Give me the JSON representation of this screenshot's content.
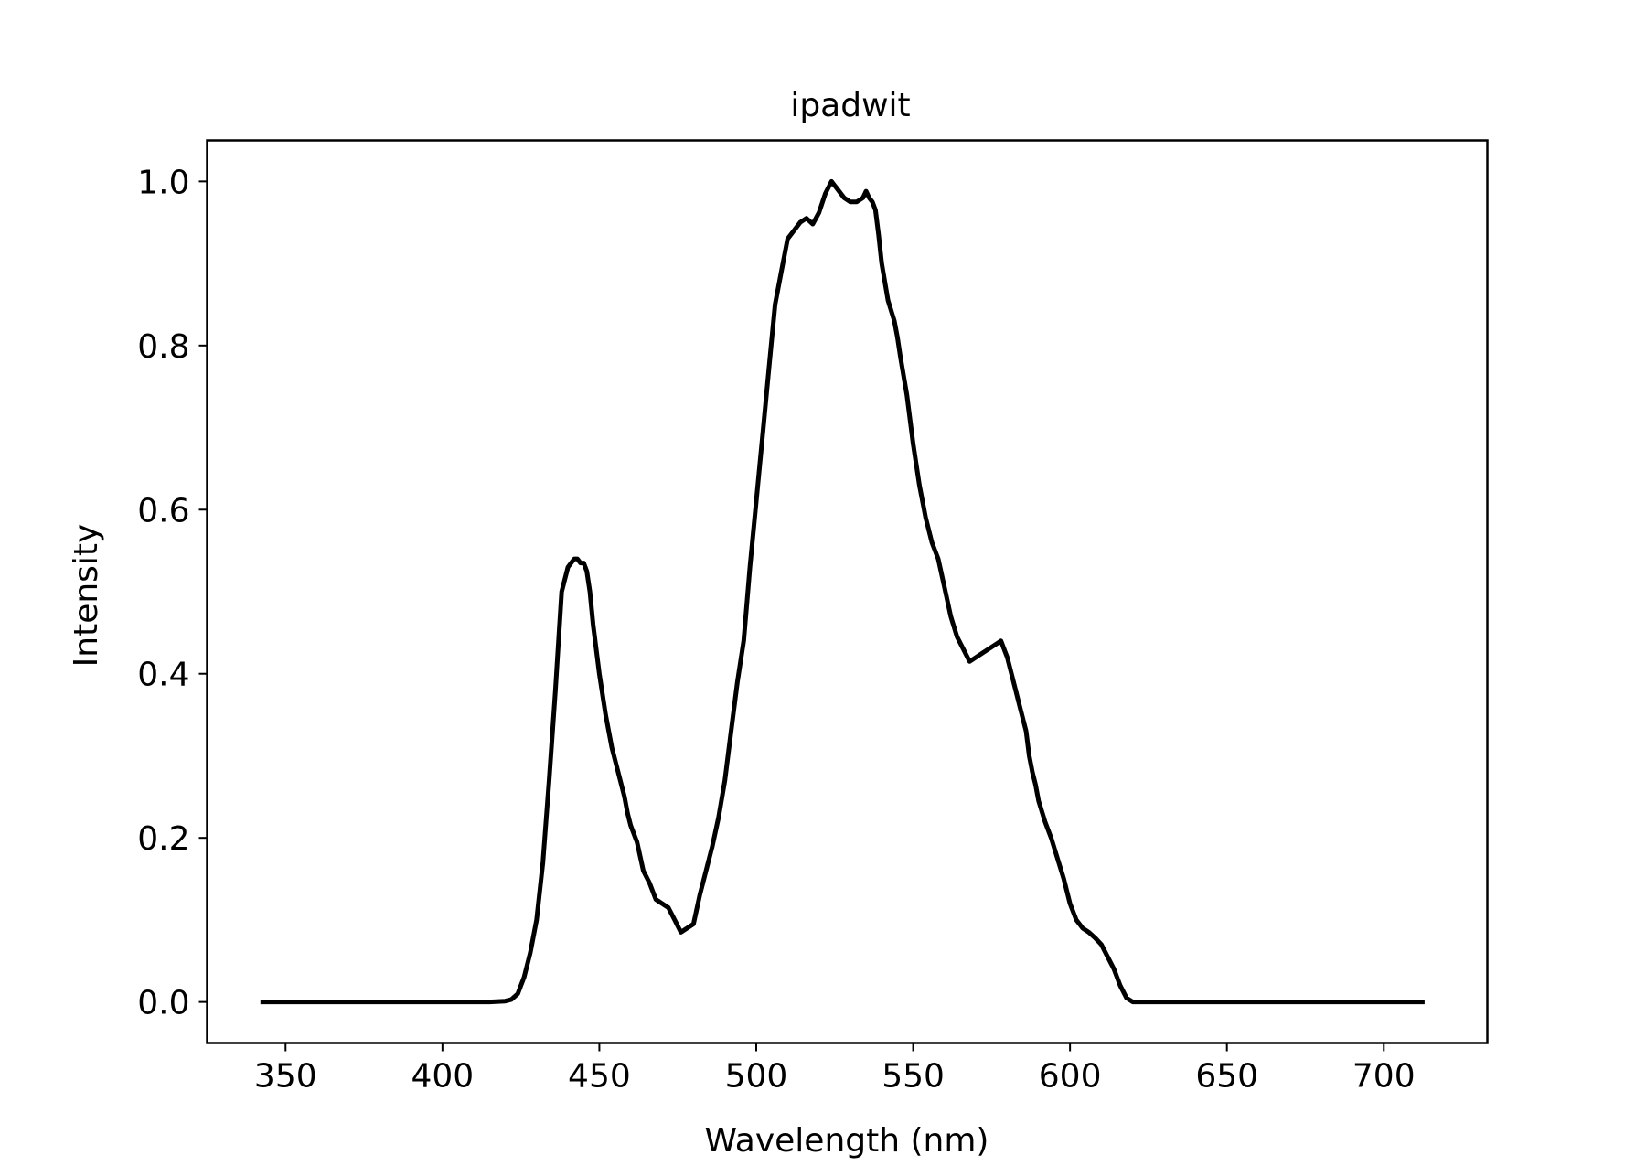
{
  "chart_data": {
    "type": "line",
    "title": "ipadwit",
    "xlabel": "Wavelength (nm)",
    "ylabel": "Intensity",
    "xlim": [
      325,
      733
    ],
    "ylim": [
      -0.05,
      1.05
    ],
    "xticks": [
      350,
      400,
      450,
      500,
      550,
      600,
      650,
      700
    ],
    "yticks": [
      0.0,
      0.2,
      0.4,
      0.6,
      0.8,
      1.0
    ],
    "xtick_labels": [
      "350",
      "400",
      "450",
      "500",
      "550",
      "600",
      "650",
      "700"
    ],
    "ytick_labels": [
      "0.0",
      "0.2",
      "0.4",
      "0.6",
      "0.8",
      "1.0"
    ],
    "grid": false,
    "line_color": "#000000",
    "series": [
      {
        "x": [
          342,
          360,
          380,
          400,
          415,
          420,
          422,
          424,
          425,
          426,
          428,
          430,
          432,
          434,
          436,
          438,
          440,
          442,
          443,
          444,
          445,
          446,
          447,
          448,
          450,
          452,
          454,
          456,
          458,
          459,
          460,
          462,
          464,
          466,
          468,
          470,
          472,
          474,
          476,
          478,
          480,
          482,
          484,
          486,
          488,
          490,
          492,
          494,
          496,
          498,
          500,
          502,
          504,
          506,
          508,
          510,
          512,
          514,
          516,
          518,
          520,
          522,
          524,
          526,
          528,
          530,
          532,
          534,
          535,
          536,
          537,
          538,
          539,
          540,
          542,
          544,
          545,
          546,
          548,
          550,
          552,
          554,
          556,
          558,
          560,
          562,
          564,
          566,
          568,
          570,
          572,
          574,
          576,
          578,
          580,
          582,
          584,
          586,
          587,
          588,
          589,
          590,
          592,
          594,
          596,
          598,
          600,
          602,
          604,
          606,
          608,
          610,
          612,
          614,
          616,
          618,
          620,
          622,
          624,
          626,
          628,
          630,
          632,
          634,
          636,
          638,
          640,
          642,
          644,
          646,
          648,
          650,
          652,
          660,
          680,
          700,
          713
        ],
        "y": [
          0.0,
          0.0,
          0.0,
          0.0,
          0.0,
          0.001,
          0.003,
          0.01,
          0.02,
          0.03,
          0.06,
          0.1,
          0.17,
          0.27,
          0.38,
          0.5,
          0.53,
          0.54,
          0.54,
          0.535,
          0.535,
          0.525,
          0.5,
          0.46,
          0.4,
          0.35,
          0.31,
          0.28,
          0.25,
          0.23,
          0.215,
          0.195,
          0.16,
          0.145,
          0.125,
          0.12,
          0.115,
          0.1,
          0.085,
          0.09,
          0.095,
          0.13,
          0.16,
          0.19,
          0.225,
          0.27,
          0.33,
          0.39,
          0.44,
          0.53,
          0.61,
          0.69,
          0.77,
          0.85,
          0.89,
          0.93,
          0.94,
          0.95,
          0.955,
          0.948,
          0.962,
          0.985,
          1.0,
          0.99,
          0.98,
          0.975,
          0.975,
          0.98,
          0.988,
          0.98,
          0.975,
          0.965,
          0.935,
          0.9,
          0.855,
          0.83,
          0.81,
          0.785,
          0.74,
          0.68,
          0.63,
          0.59,
          0.56,
          0.54,
          0.505,
          0.47,
          0.445,
          0.43,
          0.415,
          0.42,
          0.425,
          0.43,
          0.435,
          0.44,
          0.42,
          0.39,
          0.36,
          0.33,
          0.3,
          0.28,
          0.265,
          0.245,
          0.22,
          0.2,
          0.175,
          0.15,
          0.12,
          0.1,
          0.09,
          0.085,
          0.078,
          0.07,
          0.055,
          0.04,
          0.02,
          0.005,
          0.0,
          0.0,
          0.0,
          0.0,
          0.0,
          0.0,
          0.0,
          0.0,
          0.0,
          0.0,
          0.0,
          0.0,
          0.0,
          0.0,
          0.0,
          0.0,
          0.0,
          0.0,
          0.0,
          0.0,
          0.0
        ]
      }
    ]
  }
}
